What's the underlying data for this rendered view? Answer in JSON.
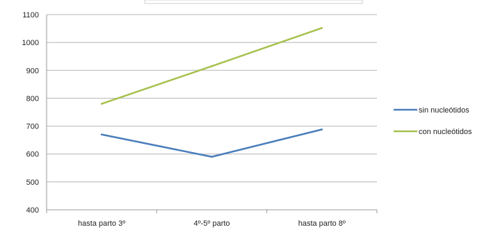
{
  "chart_data": {
    "type": "line",
    "categories": [
      "hasta parto 3º",
      "4º-5º parto",
      "hasta parto 8º"
    ],
    "series": [
      {
        "name": "sin nucleótidos",
        "values": [
          670,
          590,
          688
        ],
        "color": "#4a7ebb"
      },
      {
        "name": "con nucleótidos",
        "values": [
          780,
          915,
          1052
        ],
        "color": "#a6c14d"
      }
    ],
    "ylim": [
      400,
      1100
    ],
    "yticks": [
      400,
      500,
      600,
      700,
      800,
      900,
      1000,
      1100
    ],
    "grid": true,
    "legend_position": "right"
  }
}
